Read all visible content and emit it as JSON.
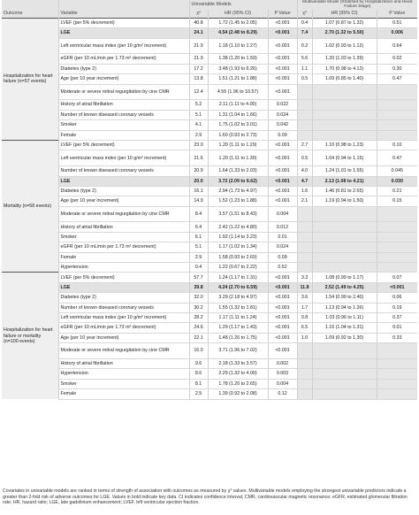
{
  "header": {
    "outcome": "Outcome",
    "variable": "Variable",
    "univariable": "Univariable Models",
    "multivariable": "Multivariable Model (Stratified by Hospitalization and Heart Failure Stage)",
    "chi2": "χ²",
    "hr": "HR (95% CI)",
    "p": "P Value"
  },
  "groups": [
    {
      "outcome": "Hospitalization for heart failure (n=57 events)",
      "rows": [
        {
          "variable": "LVEF (per 5% decrement)",
          "u_chi": "40.8",
          "u_hr": "1.72 (1.45 to 2.05)",
          "u_p": "<0.001",
          "m_chi": "0.4",
          "m_hr": "1.07 (0.87 to 1.32)",
          "m_p": "0.51",
          "bold": false,
          "lines": 1
        },
        {
          "variable": "LGE",
          "u_chi": "24.1",
          "u_hr": "4.54 (2.48 to 8.29)",
          "u_p": "<0.001",
          "m_chi": "7.4",
          "m_hr": "2.70 (1.32 to 5.50)",
          "m_p": "0.006",
          "bold": true,
          "lines": 1
        },
        {
          "variable": "Left ventricular mass index (per 10 g/m² increment)",
          "u_chi": "21.9",
          "u_hr": "1.18 (1.10 to 1.27)",
          "u_p": "<0.001",
          "m_chi": "0.2",
          "m_hr": "1.02 (0.93 to 1.12)",
          "m_p": "0.64",
          "bold": false,
          "lines": 2
        },
        {
          "variable": "eGFR (per 10 mL/min per 1.73 m² decrement)",
          "u_chi": "21.9",
          "u_hr": "1.38 (1.20 to 1.59)",
          "u_p": "<0.001",
          "m_chi": "5.6",
          "m_hr": "1.20 (1.03 to 1.39)",
          "m_p": "0.02",
          "bold": false,
          "lines": 1
        },
        {
          "variable": "Diabetes (type 2)",
          "u_chi": "17.2",
          "u_hr": "3.48 (1.93 to 6.26)",
          "u_p": "<0.001",
          "m_chi": "1.1",
          "m_hr": "1.70 (0.98 to 4.12)",
          "m_p": "0.30",
          "bold": false,
          "lines": 1
        },
        {
          "variable": "Age (per 10 year increment)",
          "u_chi": "13.8",
          "u_hr": "1.51 (1.21 to 1.88)",
          "u_p": "<0.001",
          "m_chi": "0.5",
          "m_hr": "1.09 (0.85 to 1.40)",
          "m_p": "0.47",
          "bold": false,
          "lines": 1
        },
        {
          "variable": "Moderate or severe mitral regurgitation by cine CMR",
          "u_chi": "12.4",
          "u_hr": "4.55 (1.96 to 10.57)",
          "u_p": "<0.001",
          "m_chi": "",
          "m_hr": "",
          "m_p": "",
          "bold": false,
          "lines": 2
        },
        {
          "variable": "History of atrial fibrillation",
          "u_chi": "5.2",
          "u_hr": "2.11 (1.11 to 4.00)",
          "u_p": "0.022",
          "m_chi": "",
          "m_hr": "",
          "m_p": "",
          "bold": false,
          "lines": 1
        },
        {
          "variable": "Number of known diseased coronary vessels",
          "u_chi": "5.1",
          "u_hr": "1.31 (1.04 to 1.66)",
          "u_p": "0.024",
          "m_chi": "",
          "m_hr": "",
          "m_p": "",
          "bold": false,
          "lines": 1
        },
        {
          "variable": "Smoker",
          "u_chi": "4.1",
          "u_hr": "1.75 (1.02 to 3.01)",
          "u_p": "0.042",
          "m_chi": "",
          "m_hr": "",
          "m_p": "",
          "bold": false,
          "lines": 1
        },
        {
          "variable": "Female",
          "u_chi": "2.9",
          "u_hr": "1.60 (0.93 to 2.73)",
          "u_p": "0.09",
          "m_chi": "",
          "m_hr": "",
          "m_p": "",
          "bold": false,
          "lines": 1
        }
      ]
    },
    {
      "outcome": "Mortality (n=58 events)",
      "rows": [
        {
          "variable": "LVEF (per 5% decrement)",
          "u_chi": "23.0",
          "u_hr": "1.20 (1.11 to 1.29)",
          "u_p": "<0.001",
          "m_chi": "2.7",
          "m_hr": "1.10 (0.98 to 1.23)",
          "m_p": "0.10",
          "bold": false,
          "lines": 1
        },
        {
          "variable": "Left ventricular mass index (per 10 g/m² increment)",
          "u_chi": "21.6",
          "u_hr": "1.20 (1.11 to 1.30)",
          "u_p": "<0.001",
          "m_chi": "0.5",
          "m_hr": "1.04 (0.94 to 1.15)",
          "m_p": "0.47",
          "bold": false,
          "lines": 2
        },
        {
          "variable": "Number of known diseased coronary vessels",
          "u_chi": "20.9",
          "u_hr": "1.64 (1.33 to 2.03)",
          "u_p": "<0.001",
          "m_chi": "4.0",
          "m_hr": "1.24 (1.01 to 1.55)",
          "m_p": "0.045",
          "bold": false,
          "lines": 1
        },
        {
          "variable": "LGE",
          "u_chi": "20.0",
          "u_hr": "3.72 (2.09 to 6.62)",
          "u_p": "<0.001",
          "m_chi": "4.7",
          "m_hr": "2.13 (1.08 to 4.21)",
          "m_p": "0.030",
          "bold": true,
          "lines": 1
        },
        {
          "variable": "Diabetes (type 2)",
          "u_chi": "16.1",
          "u_hr": "2.94 (1.73 to 4.97)",
          "u_p": "<0.001",
          "m_chi": "1.6",
          "m_hr": "1.46 (0.81 to 2.65)",
          "m_p": "0.21",
          "bold": false,
          "lines": 1
        },
        {
          "variable": "Age (per 10 year increment)",
          "u_chi": "14.9",
          "u_hr": "1.52 (1.23 to 1.88)",
          "u_p": "<0.001",
          "m_chi": "2.1",
          "m_hr": "1.19 (0.94 to 1.50)",
          "m_p": "0.15",
          "bold": false,
          "lines": 1
        },
        {
          "variable": "Moderate or severe mitral regurgitation by cine CMR",
          "u_chi": "8.4",
          "u_hr": "3.57 (1.51 to 8.43)",
          "u_p": "0.004",
          "m_chi": "",
          "m_hr": "",
          "m_p": "",
          "bold": false,
          "lines": 2
        },
        {
          "variable": "History of atrial fibrillation",
          "u_chi": "6.4",
          "u_hr": "2.42 (1.22 to 4.80)",
          "u_p": "0.012",
          "m_chi": "",
          "m_hr": "",
          "m_p": "",
          "bold": false,
          "lines": 1
        },
        {
          "variable": "Smoker",
          "u_chi": "6.1",
          "u_hr": "1.92 (1.14 to 3.23)",
          "u_p": "0.01",
          "m_chi": "",
          "m_hr": "",
          "m_p": "",
          "bold": false,
          "lines": 1
        },
        {
          "variable": "eGFR (per 10 mL/min per 1.73 m² decrement)",
          "u_chi": "5.1",
          "u_hr": "1.17 (1.02 to 1.34)",
          "u_p": "0.024",
          "m_chi": "",
          "m_hr": "",
          "m_p": "",
          "bold": false,
          "lines": 1
        },
        {
          "variable": "Female",
          "u_chi": "2.9",
          "u_hr": "1.58 (0.93 to 2.69)",
          "u_p": "0.09",
          "m_chi": "",
          "m_hr": "",
          "m_p": "",
          "bold": false,
          "lines": 1
        },
        {
          "variable": "Hypertension",
          "u_chi": "0.4",
          "u_hr": "1.22 (0.67 to 2.22)",
          "u_p": "0.52",
          "m_chi": "",
          "m_hr": "",
          "m_p": "",
          "bold": false,
          "lines": 1
        }
      ]
    },
    {
      "outcome": "Hospitalization for heart failure or mortality (n=100 events)",
      "rows": [
        {
          "variable": "LVEF (per 5% decrement)",
          "u_chi": "57.7",
          "u_hr": "1.24 (1.17 to 1.31)",
          "u_p": "<0.001",
          "m_chi": "3.3",
          "m_hr": "1.08 (0.99 to 1.17)",
          "m_p": "0.07",
          "bold": false,
          "lines": 1
        },
        {
          "variable": "LGE",
          "u_chi": "39.8",
          "u_hr": "4.24 (2.70 to 6.59)",
          "u_p": "<0.001",
          "m_chi": "11.8",
          "m_hr": "2.52 (1.49 to 4.25)",
          "m_p": "<0.001",
          "bold": true,
          "lines": 1
        },
        {
          "variable": "Diabetes (type 2)",
          "u_chi": "32.0",
          "u_hr": "3.29 (2.18 to 4.97)",
          "u_p": "<0.001",
          "m_chi": "3.6",
          "m_hr": "1.54 (0.99 to 2.40)",
          "m_p": "0.06",
          "bold": false,
          "lines": 1
        },
        {
          "variable": "Number of known diseased coronary vessels",
          "u_chi": "30.2",
          "u_hr": "1.55 (1.32 to 1.81)",
          "u_p": "<0.001",
          "m_chi": "1.7",
          "m_hr": "1.13 (0.94 to 1.36)",
          "m_p": "0.19",
          "bold": false,
          "lines": 1
        },
        {
          "variable": "Left ventricular mass index (per 10 g/m² increment)",
          "u_chi": "28.2",
          "u_hr": "1.17 (1.11 to 1.24)",
          "u_p": "<0.001",
          "m_chi": "0.8",
          "m_hr": "1.03 (0.96 to 1.11)",
          "m_p": "0.37",
          "bold": false,
          "lines": 1
        },
        {
          "variable": "eGFR (per 10 mL/min per 1.73 m² decrement)",
          "u_chi": "24.6",
          "u_hr": "1.29 (1.17 to 1.43)",
          "u_p": "<0.001",
          "m_chi": "6.5",
          "m_hr": "1.16 (1.04 to 1.31)",
          "m_p": "0.01",
          "bold": false,
          "lines": 1
        },
        {
          "variable": "Age (per 10 year increment)",
          "u_chi": "22.1",
          "u_hr": "1.48 (1.26 to 1.75)",
          "u_p": "<0.001",
          "m_chi": "1.0",
          "m_hr": "1.09 (0.92 to 1.30)",
          "m_p": "0.33",
          "bold": false,
          "lines": 1
        },
        {
          "variable": "Moderate or severe mitral regurgitation by cine CMR",
          "u_chi": "16.0",
          "u_hr": "3.71 (1.96 to 7.02)",
          "u_p": "<0.001",
          "m_chi": "",
          "m_hr": "",
          "m_p": "",
          "bold": false,
          "lines": 2
        },
        {
          "variable": "History of atrial fibrillation",
          "u_chi": "9.6",
          "u_hr": "2.18 (1.33 to 3.57)",
          "u_p": "0.002",
          "m_chi": "",
          "m_hr": "",
          "m_p": "",
          "bold": false,
          "lines": 1
        },
        {
          "variable": "Hypertension",
          "u_chi": "8.6",
          "u_hr": "2.29 (1.32 to 4.00)",
          "u_p": "0.003",
          "m_chi": "",
          "m_hr": "",
          "m_p": "",
          "bold": false,
          "lines": 1
        },
        {
          "variable": "Smoker",
          "u_chi": "8.1",
          "u_hr": "1.78 (1.20 to 2.65)",
          "u_p": "0.004",
          "m_chi": "",
          "m_hr": "",
          "m_p": "",
          "bold": false,
          "lines": 1
        },
        {
          "variable": "Female",
          "u_chi": "2.5",
          "u_hr": "1.39 (0.92 to 2.08)",
          "u_p": "0.12",
          "m_chi": "",
          "m_hr": "",
          "m_p": "",
          "bold": false,
          "lines": 1
        }
      ]
    }
  ],
  "footnote": "Covariates in univariable models are ranked in terms of strength of association with outcomes as measured by χ² values. Multivariable models employing the strongest univariable predictors indicate a greater than 2-fold risk of adverse outcomes for LGE. Values in bold indicate key data. CI indicates confidence interval; CMR, cardiovascular magnetic resonance; eGFR, estimated glomerular filtration rate; HR, hazard ratio; LGE, late gadolinium enhancement; LVEF, left ventricular ejection fraction."
}
